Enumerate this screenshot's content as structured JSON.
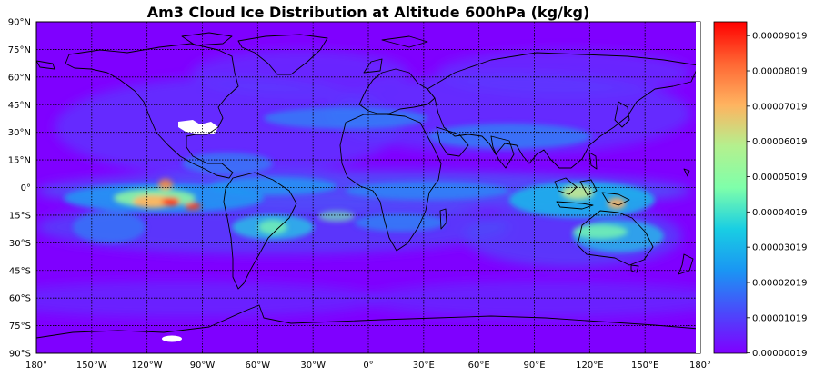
{
  "title": "Am3 Cloud Ice Distribution at Altitude 600hPa (kg/kg)",
  "map": {
    "lon_range": [
      -180,
      180
    ],
    "lat_range": [
      -90,
      90
    ],
    "colormap": "rainbow",
    "background_color": "#7f00ff",
    "coastline_color": "#000000",
    "grid": true,
    "grid_style": "dotted",
    "lat_ticks": [
      "90°N",
      "75°N",
      "60°N",
      "45°N",
      "30°N",
      "15°N",
      "0°",
      "15°S",
      "30°S",
      "45°S",
      "60°S",
      "75°S",
      "90°S"
    ],
    "lon_ticks": [
      "180°",
      "150°W",
      "120°W",
      "90°W",
      "60°W",
      "30°W",
      "0°",
      "30°E",
      "60°E",
      "90°E",
      "120°E",
      "150°E",
      "180°"
    ]
  },
  "colorbar": {
    "ticks": [
      "0.00009019",
      "0.00008019",
      "0.00007019",
      "0.00006019",
      "0.00005019",
      "0.00004019",
      "0.00003019",
      "0.00002019",
      "0.00001019",
      "0.00000019"
    ],
    "tick_values": [
      9.019e-05,
      8.019e-05,
      7.019e-05,
      6.019e-05,
      5.019e-05,
      4.019e-05,
      3.019e-05,
      2.019e-05,
      1.019e-05,
      1.9e-07
    ],
    "vmin": 1e-07,
    "vmax": 9.41e-05
  }
}
